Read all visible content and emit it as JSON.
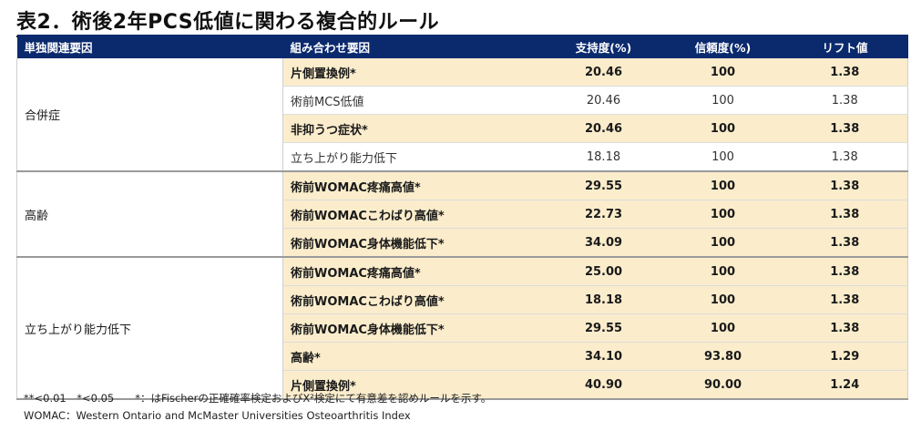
{
  "title": "表2．術後2年PCS低値に関わる複合的ルール",
  "headers": [
    "単独関連要因",
    "組み合わせ要因",
    "支持度(%)",
    "信頼度(%)",
    "リフト値"
  ],
  "groups": [
    {
      "label": "合併症",
      "rows": [
        {
          "factor": "片側置換例*",
          "support": "20.46",
          "confidence": "100",
          "lift": "1.38",
          "sig": true
        },
        {
          "factor": "術前MCS低値",
          "support": "20.46",
          "confidence": "100",
          "lift": "1.38",
          "sig": false
        },
        {
          "factor": "非抑うつ症状*",
          "support": "20.46",
          "confidence": "100",
          "lift": "1.38",
          "sig": true
        },
        {
          "factor": "立ち上がり能力低下",
          "support": "18.18",
          "confidence": "100",
          "lift": "1.38",
          "sig": false
        }
      ]
    },
    {
      "label": "高齢",
      "rows": [
        {
          "factor": "術前WOMAC疼痛高値*",
          "support": "29.55",
          "confidence": "100",
          "lift": "1.38",
          "sig": true
        },
        {
          "factor": "術前WOMACこわばり高値*",
          "support": "22.73",
          "confidence": "100",
          "lift": "1.38",
          "sig": true
        },
        {
          "factor": "術前WOMAC身体機能低下*",
          "support": "34.09",
          "confidence": "100",
          "lift": "1.38",
          "sig": true
        }
      ]
    },
    {
      "label": "立ち上がり能力低下",
      "rows": [
        {
          "factor": "術前WOMAC疼痛高値*",
          "support": "25.00",
          "confidence": "100",
          "lift": "1.38",
          "sig": true
        },
        {
          "factor": "術前WOMACこわばり高値*",
          "support": "18.18",
          "confidence": "100",
          "lift": "1.38",
          "sig": true
        },
        {
          "factor": "術前WOMAC身体機能低下*",
          "support": "29.55",
          "confidence": "100",
          "lift": "1.38",
          "sig": true
        },
        {
          "factor": "高齢*",
          "support": "34.10",
          "confidence": "93.80",
          "lift": "1.29",
          "sig": true
        },
        {
          "factor": "片側置換例*",
          "support": "40.90",
          "confidence": "90.00",
          "lift": "1.24",
          "sig": true
        }
      ]
    }
  ],
  "notes": [
    "**<0.01　*<0.05　　*：はFischerの正確確率検定およびX²検定にて有意差を認めルールを示す。",
    "WOMAC：Western Ontario and McMaster Universities Osteoarthritis Index"
  ],
  "colors": {
    "header_bg": "#0b2a6e",
    "highlight_bg": "#fbedcc"
  }
}
